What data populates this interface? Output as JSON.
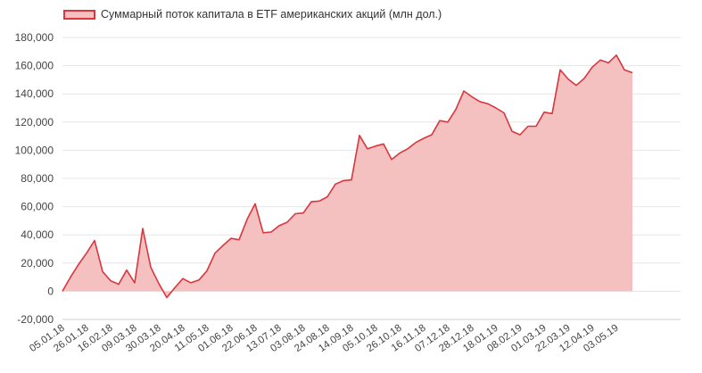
{
  "chart_data": {
    "type": "area",
    "legend": {
      "label": "Суммарный поток капитала в ETF американских акций (млн дол.)",
      "position": "top-left"
    },
    "colors": {
      "line": "#d9363e",
      "fill": "#f5c0c0",
      "grid": "#e6e6e6",
      "text": "#444444"
    },
    "grid": true,
    "ylim": [
      -20000,
      180000
    ],
    "yticks": [
      -20000,
      0,
      20000,
      40000,
      60000,
      80000,
      100000,
      120000,
      140000,
      160000,
      180000
    ],
    "ytick_labels": [
      "-20,000",
      "0",
      "20,000",
      "40,000",
      "60,000",
      "80,000",
      "100,000",
      "120,000",
      "140,000",
      "160,000",
      "180,000"
    ],
    "xtick_labels": [
      "05.01.18",
      "26.01.18",
      "16.02.18",
      "09.03.18",
      "30.03.18",
      "20.04.18",
      "11.05.18",
      "01.06.18",
      "22.06.18",
      "13.07.18",
      "03.08.18",
      "24.08.18",
      "14.09.18",
      "05.10.18",
      "26.10.18",
      "16.11.18",
      "07.12.18",
      "28.12.18",
      "18.01.19",
      "08.02.19",
      "01.03.19",
      "22.03.19",
      "12.04.19",
      "03.05.19"
    ],
    "x_dates": [
      "05.01.18",
      "12.01.18",
      "19.01.18",
      "26.01.18",
      "02.02.18",
      "09.02.18",
      "16.02.18",
      "23.02.18",
      "02.03.18",
      "09.03.18",
      "16.03.18",
      "23.03.18",
      "30.03.18",
      "06.04.18",
      "13.04.18",
      "20.04.18",
      "27.04.18",
      "04.05.18",
      "11.05.18",
      "18.05.18",
      "25.05.18",
      "01.06.18",
      "08.06.18",
      "15.06.18",
      "22.06.18",
      "29.06.18",
      "06.07.18",
      "13.07.18",
      "20.07.18",
      "27.07.18",
      "03.08.18",
      "10.08.18",
      "17.08.18",
      "24.08.18",
      "31.08.18",
      "07.09.18",
      "14.09.18",
      "21.09.18",
      "28.09.18",
      "05.10.18",
      "12.10.18",
      "19.10.18",
      "26.10.18",
      "02.11.18",
      "09.11.18",
      "16.11.18",
      "23.11.18",
      "30.11.18",
      "07.12.18",
      "14.12.18",
      "21.12.18",
      "28.12.18",
      "04.01.19",
      "11.01.19",
      "18.01.19",
      "25.01.19",
      "01.02.19",
      "08.02.19",
      "15.02.19",
      "22.02.19",
      "01.03.19",
      "08.03.19",
      "15.03.19",
      "22.03.19",
      "29.03.19",
      "05.04.19",
      "12.04.19",
      "19.04.19",
      "26.04.19",
      "03.05.19",
      "10.05.19",
      "17.05.19",
      "24.05.19",
      "31.05.19",
      "07.06.19",
      "14.06.19",
      "21.06.19",
      "28.06.19"
    ],
    "values": [
      0,
      10000,
      19000,
      27000,
      36000,
      14000,
      7500,
      5000,
      15000,
      6000,
      44500,
      17000,
      5500,
      -4500,
      2500,
      9000,
      6000,
      8000,
      14500,
      27000,
      32500,
      37500,
      36500,
      51000,
      62000,
      41500,
      42000,
      46500,
      49000,
      55000,
      55500,
      63500,
      64000,
      67000,
      76000,
      78500,
      79000,
      110500,
      101000,
      103000,
      104500,
      93500,
      98000,
      101000,
      105500,
      108500,
      111000,
      121000,
      120000,
      129000,
      142000,
      138000,
      134500,
      133000,
      130000,
      126500,
      113500,
      111000,
      117000,
      117000,
      127000,
      126000,
      157000,
      150500,
      146000,
      151000,
      159000,
      164000,
      162000,
      167500,
      157000,
      155000,
      null,
      null,
      null,
      null,
      null,
      null
    ]
  }
}
